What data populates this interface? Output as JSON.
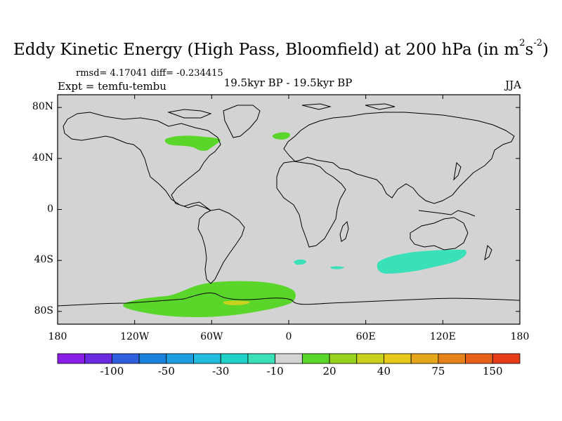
{
  "title": {
    "main": "Eddy Kinetic Energy (High Pass, Bloomfield) at 200 hPa (in m",
    "sup1": "2",
    "mid": "s",
    "sup2": "-2",
    "end": ")"
  },
  "stats": "rmsd= 4.17041 diff= -0.234415",
  "expt": "Expt = temfu-tembu",
  "period": "19.5kyr BP - 19.5kyr BP",
  "season": "JJA",
  "map": {
    "lon_range": [
      -180,
      180
    ],
    "lat_range": [
      -90,
      90
    ],
    "background_color": "#d3d3d3",
    "lat_ticks": [
      {
        "value": 80,
        "label": "80N"
      },
      {
        "value": 40,
        "label": "40N"
      },
      {
        "value": 0,
        "label": "0"
      },
      {
        "value": -40,
        "label": "40S"
      },
      {
        "value": -80,
        "label": "80S"
      }
    ],
    "lon_ticks": [
      {
        "value": -180,
        "label": "180"
      },
      {
        "value": -120,
        "label": "120W"
      },
      {
        "value": -60,
        "label": "60W"
      },
      {
        "value": 0,
        "label": "0"
      },
      {
        "value": 60,
        "label": "60E"
      },
      {
        "value": 120,
        "label": "120E"
      },
      {
        "value": 180,
        "label": "180"
      }
    ]
  },
  "colorbar": {
    "colors": [
      "#8a1ee6",
      "#6a2be0",
      "#2f5fdc",
      "#1a82dc",
      "#1e9ee0",
      "#21bce0",
      "#1fd2c8",
      "#3ae0b8",
      "#d3d3d3",
      "#5ad62a",
      "#96d21e",
      "#c8d21e",
      "#e6c81a",
      "#e6a61a",
      "#e6821a",
      "#e6601a",
      "#e63c1a"
    ],
    "labels": [
      {
        "boundary": 2,
        "text": "-100"
      },
      {
        "boundary": 4,
        "text": "-50"
      },
      {
        "boundary": 6,
        "text": "-30"
      },
      {
        "boundary": 8,
        "text": "-10"
      },
      {
        "boundary": 10,
        "text": "20"
      },
      {
        "boundary": 12,
        "text": "40"
      },
      {
        "boundary": 14,
        "text": "75"
      },
      {
        "boundary": 16,
        "text": "150"
      }
    ]
  },
  "anomaly_regions": [
    {
      "name": "north-america-positive",
      "color": "#5ad62a",
      "sign": "positive"
    },
    {
      "name": "north-atlantic-positive",
      "color": "#5ad62a",
      "sign": "positive"
    },
    {
      "name": "southern-ocean-positive",
      "color": "#5ad62a",
      "sign": "positive"
    },
    {
      "name": "antarctic-max-positive",
      "color": "#c8d21e",
      "sign": "positive"
    },
    {
      "name": "south-indian-negative",
      "color": "#3ae0b8",
      "sign": "negative"
    },
    {
      "name": "south-atlantic-negative",
      "color": "#3ae0b8",
      "sign": "negative"
    }
  ]
}
